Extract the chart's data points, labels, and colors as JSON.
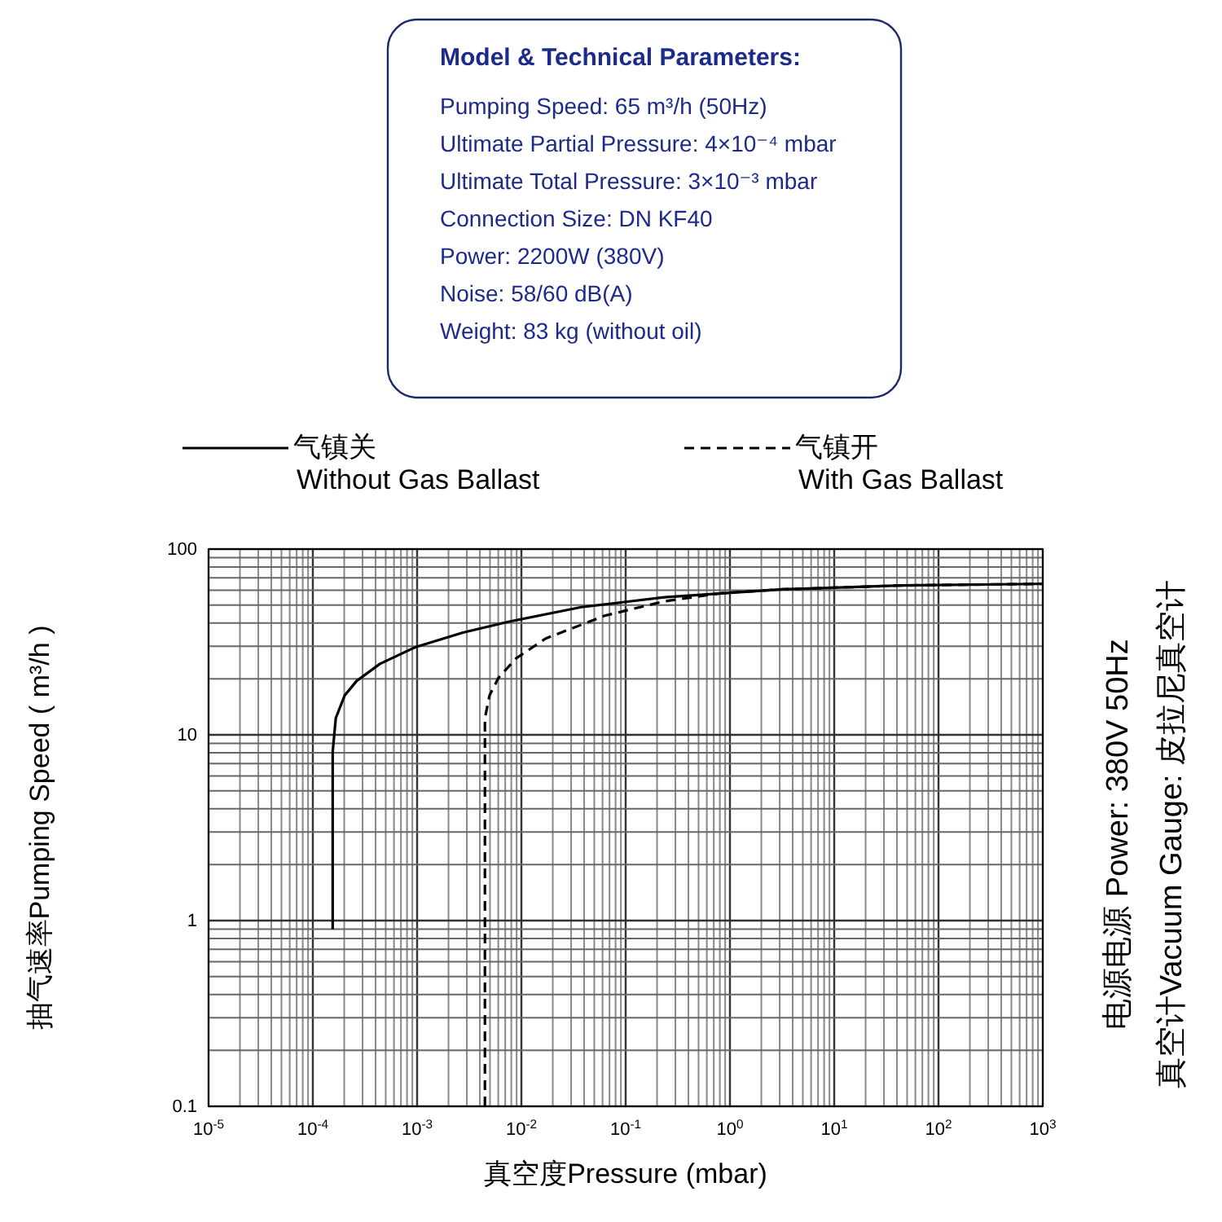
{
  "chart_data": {
    "type": "line",
    "title": "Model & Technical Parameters:",
    "xlabel": "真空度Pressure (mbar)",
    "ylabel": "抽气速率Pumping Speed ( m³/h )",
    "log": "xy",
    "grid": true,
    "legend": "top",
    "xlim": [
      1e-05,
      1000
    ],
    "ylim": [
      0.1,
      100
    ],
    "xticks": [
      {
        "value": 1e-05,
        "label": "10$^{-5}$"
      },
      {
        "value": 0.0001,
        "label": "10$^{-4}$"
      },
      {
        "value": 0.001,
        "label": "10$^{-3}$"
      },
      {
        "value": 0.01,
        "label": "10$^{-2}$"
      },
      {
        "value": 0.1,
        "label": "10$^{-1}$"
      },
      {
        "value": 1,
        "label": "10$^{0}$"
      },
      {
        "value": 10,
        "label": "10$^{1}$"
      },
      {
        "value": 100,
        "label": "10$^{2}$"
      },
      {
        "value": 1000,
        "label": "10$^{3}$"
      }
    ],
    "yticks": [
      0.1,
      1,
      10,
      100
    ],
    "series": [
      {
        "name": "气镇关\nWithout Gas Ballast",
        "color": "#000000",
        "line_style": "solid",
        "x": [
          0.000155,
          0.000155,
          0.000166,
          0.000202,
          0.000263,
          0.00044,
          0.00097,
          0.00275,
          0.0078,
          0.0375,
          0.234,
          3.19,
          43.5,
          1000
        ],
        "values": [
          0.9,
          8.1,
          12.3,
          16.3,
          19.5,
          24.1,
          29.7,
          35.5,
          40.8,
          48.7,
          55,
          60.7,
          63.7,
          65
        ]
      },
      {
        "name": "气镇开\nWith Gas Ballast",
        "color": "#000000",
        "line_style": "dashed",
        "x": [
          0.00447,
          0.00447,
          0.00495,
          0.006,
          0.0089,
          0.0171,
          0.063,
          0.234,
          0.86,
          3.19,
          43.5,
          1000
        ],
        "values": [
          0.1,
          12.3,
          16.3,
          20.2,
          25.8,
          33,
          43.8,
          52.3,
          58.1,
          60.7,
          63.7,
          65
        ]
      }
    ],
    "annotations": [
      "Pumping Speed: 65 m³/h (50Hz)",
      "Ultimate Partial Pressure: 4×10⁻⁴ mbar",
      "Ultimate Total Pressure: 3×10⁻³ mbar",
      "Connection Size: DN KF40",
      "Power: 2200W (380V)",
      "Noise: 58/60 dB(A)",
      "Weight: 83 kg (without oil)",
      "电源电源 Power: 380V 50Hz",
      "真空计Vacuum Gauge: 皮拉尼真空计"
    ]
  }
}
